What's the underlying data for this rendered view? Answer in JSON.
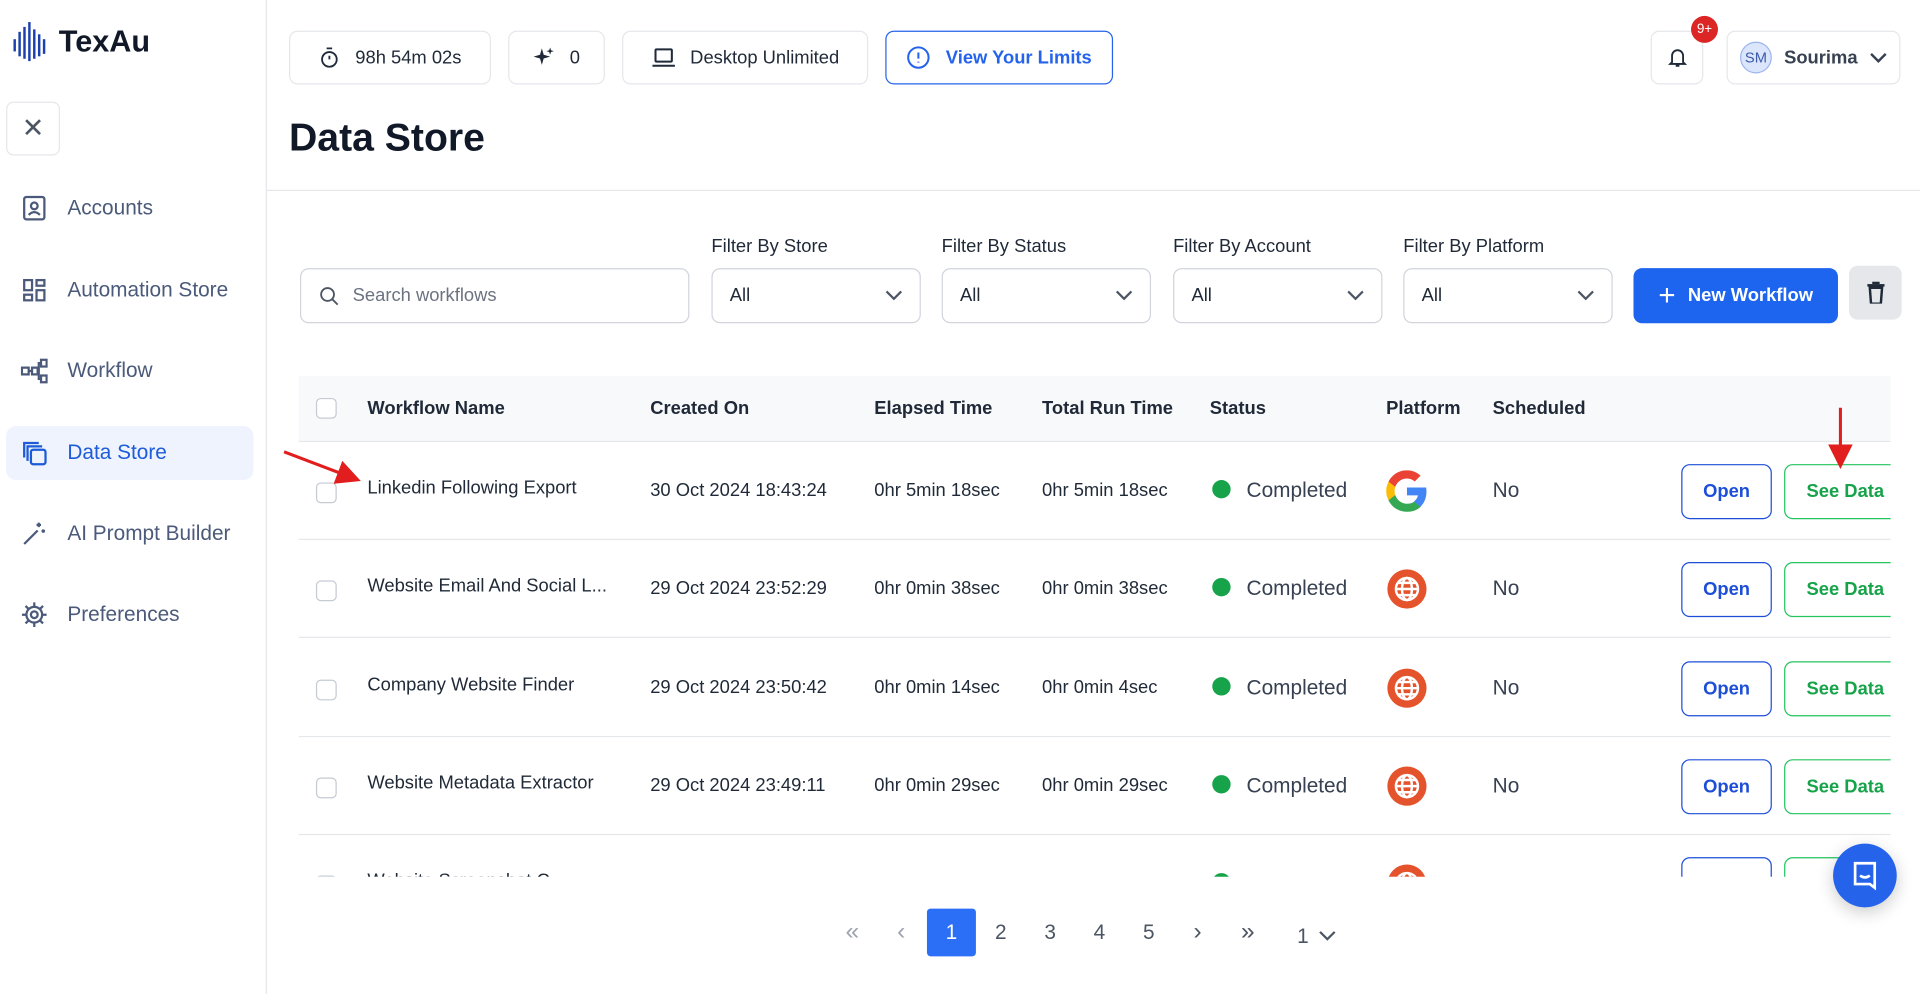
{
  "app": {
    "name": "TexAu"
  },
  "sidebar": {
    "items": [
      {
        "label": "Accounts",
        "icon": "contact-icon"
      },
      {
        "label": "Automation Store",
        "icon": "dashboard-icon"
      },
      {
        "label": "Workflow",
        "icon": "workflow-icon"
      },
      {
        "label": "Data Store",
        "icon": "copy-icon",
        "active": true
      },
      {
        "label": "AI Prompt Builder",
        "icon": "magic-wand-icon"
      },
      {
        "label": "Preferences",
        "icon": "gear-icon"
      }
    ]
  },
  "topbar": {
    "timer": "98h 54m 02s",
    "credits": "0",
    "plan": "Desktop Unlimited",
    "limits": "View Your Limits",
    "notifications": "9+",
    "user_initials": "SM",
    "user_name": "Sourima"
  },
  "page": {
    "title": "Data Store"
  },
  "filters": {
    "search_placeholder": "Search workflows",
    "store_label": "Filter By Store",
    "store_value": "All",
    "status_label": "Filter By Status",
    "status_value": "All",
    "account_label": "Filter By Account",
    "account_value": "All",
    "platform_label": "Filter By Platform",
    "platform_value": "All",
    "new_workflow": "New Workflow"
  },
  "table": {
    "columns": [
      "Workflow Name",
      "Created On",
      "Elapsed Time",
      "Total Run Time",
      "Status",
      "Platform",
      "Scheduled"
    ],
    "open_label": "Open",
    "see_data_label": "See Data",
    "rows": [
      {
        "name": "Linkedin Following Export",
        "created": "30 Oct 2024 18:43:24",
        "elapsed": "0hr 5min 18sec",
        "total": "0hr 5min 18sec",
        "status": "Completed",
        "platform": "google",
        "scheduled": "No"
      },
      {
        "name": "Website Email And Social L...",
        "created": "29 Oct 2024 23:52:29",
        "elapsed": "0hr 0min 38sec",
        "total": "0hr 0min 38sec",
        "status": "Completed",
        "platform": "web",
        "scheduled": "No"
      },
      {
        "name": "Company Website Finder",
        "created": "29 Oct 2024 23:50:42",
        "elapsed": "0hr 0min 14sec",
        "total": "0hr 0min 4sec",
        "status": "Completed",
        "platform": "web",
        "scheduled": "No"
      },
      {
        "name": "Website Metadata Extractor",
        "created": "29 Oct 2024 23:49:11",
        "elapsed": "0hr 0min 29sec",
        "total": "0hr 0min 29sec",
        "status": "Completed",
        "platform": "web",
        "scheduled": "No"
      },
      {
        "name": "Website Screenshot C...",
        "created": "",
        "elapsed": "",
        "total": "",
        "status": "",
        "platform": "web",
        "scheduled": ""
      }
    ]
  },
  "pagination": {
    "first": "«",
    "prev": "‹",
    "pages": [
      "1",
      "2",
      "3",
      "4",
      "5"
    ],
    "current": "1",
    "next": "›",
    "last": "»",
    "page_select": "1"
  },
  "colors": {
    "accent": "#1d64ee",
    "success": "#16a34a",
    "annotation": "#e11d1d"
  }
}
